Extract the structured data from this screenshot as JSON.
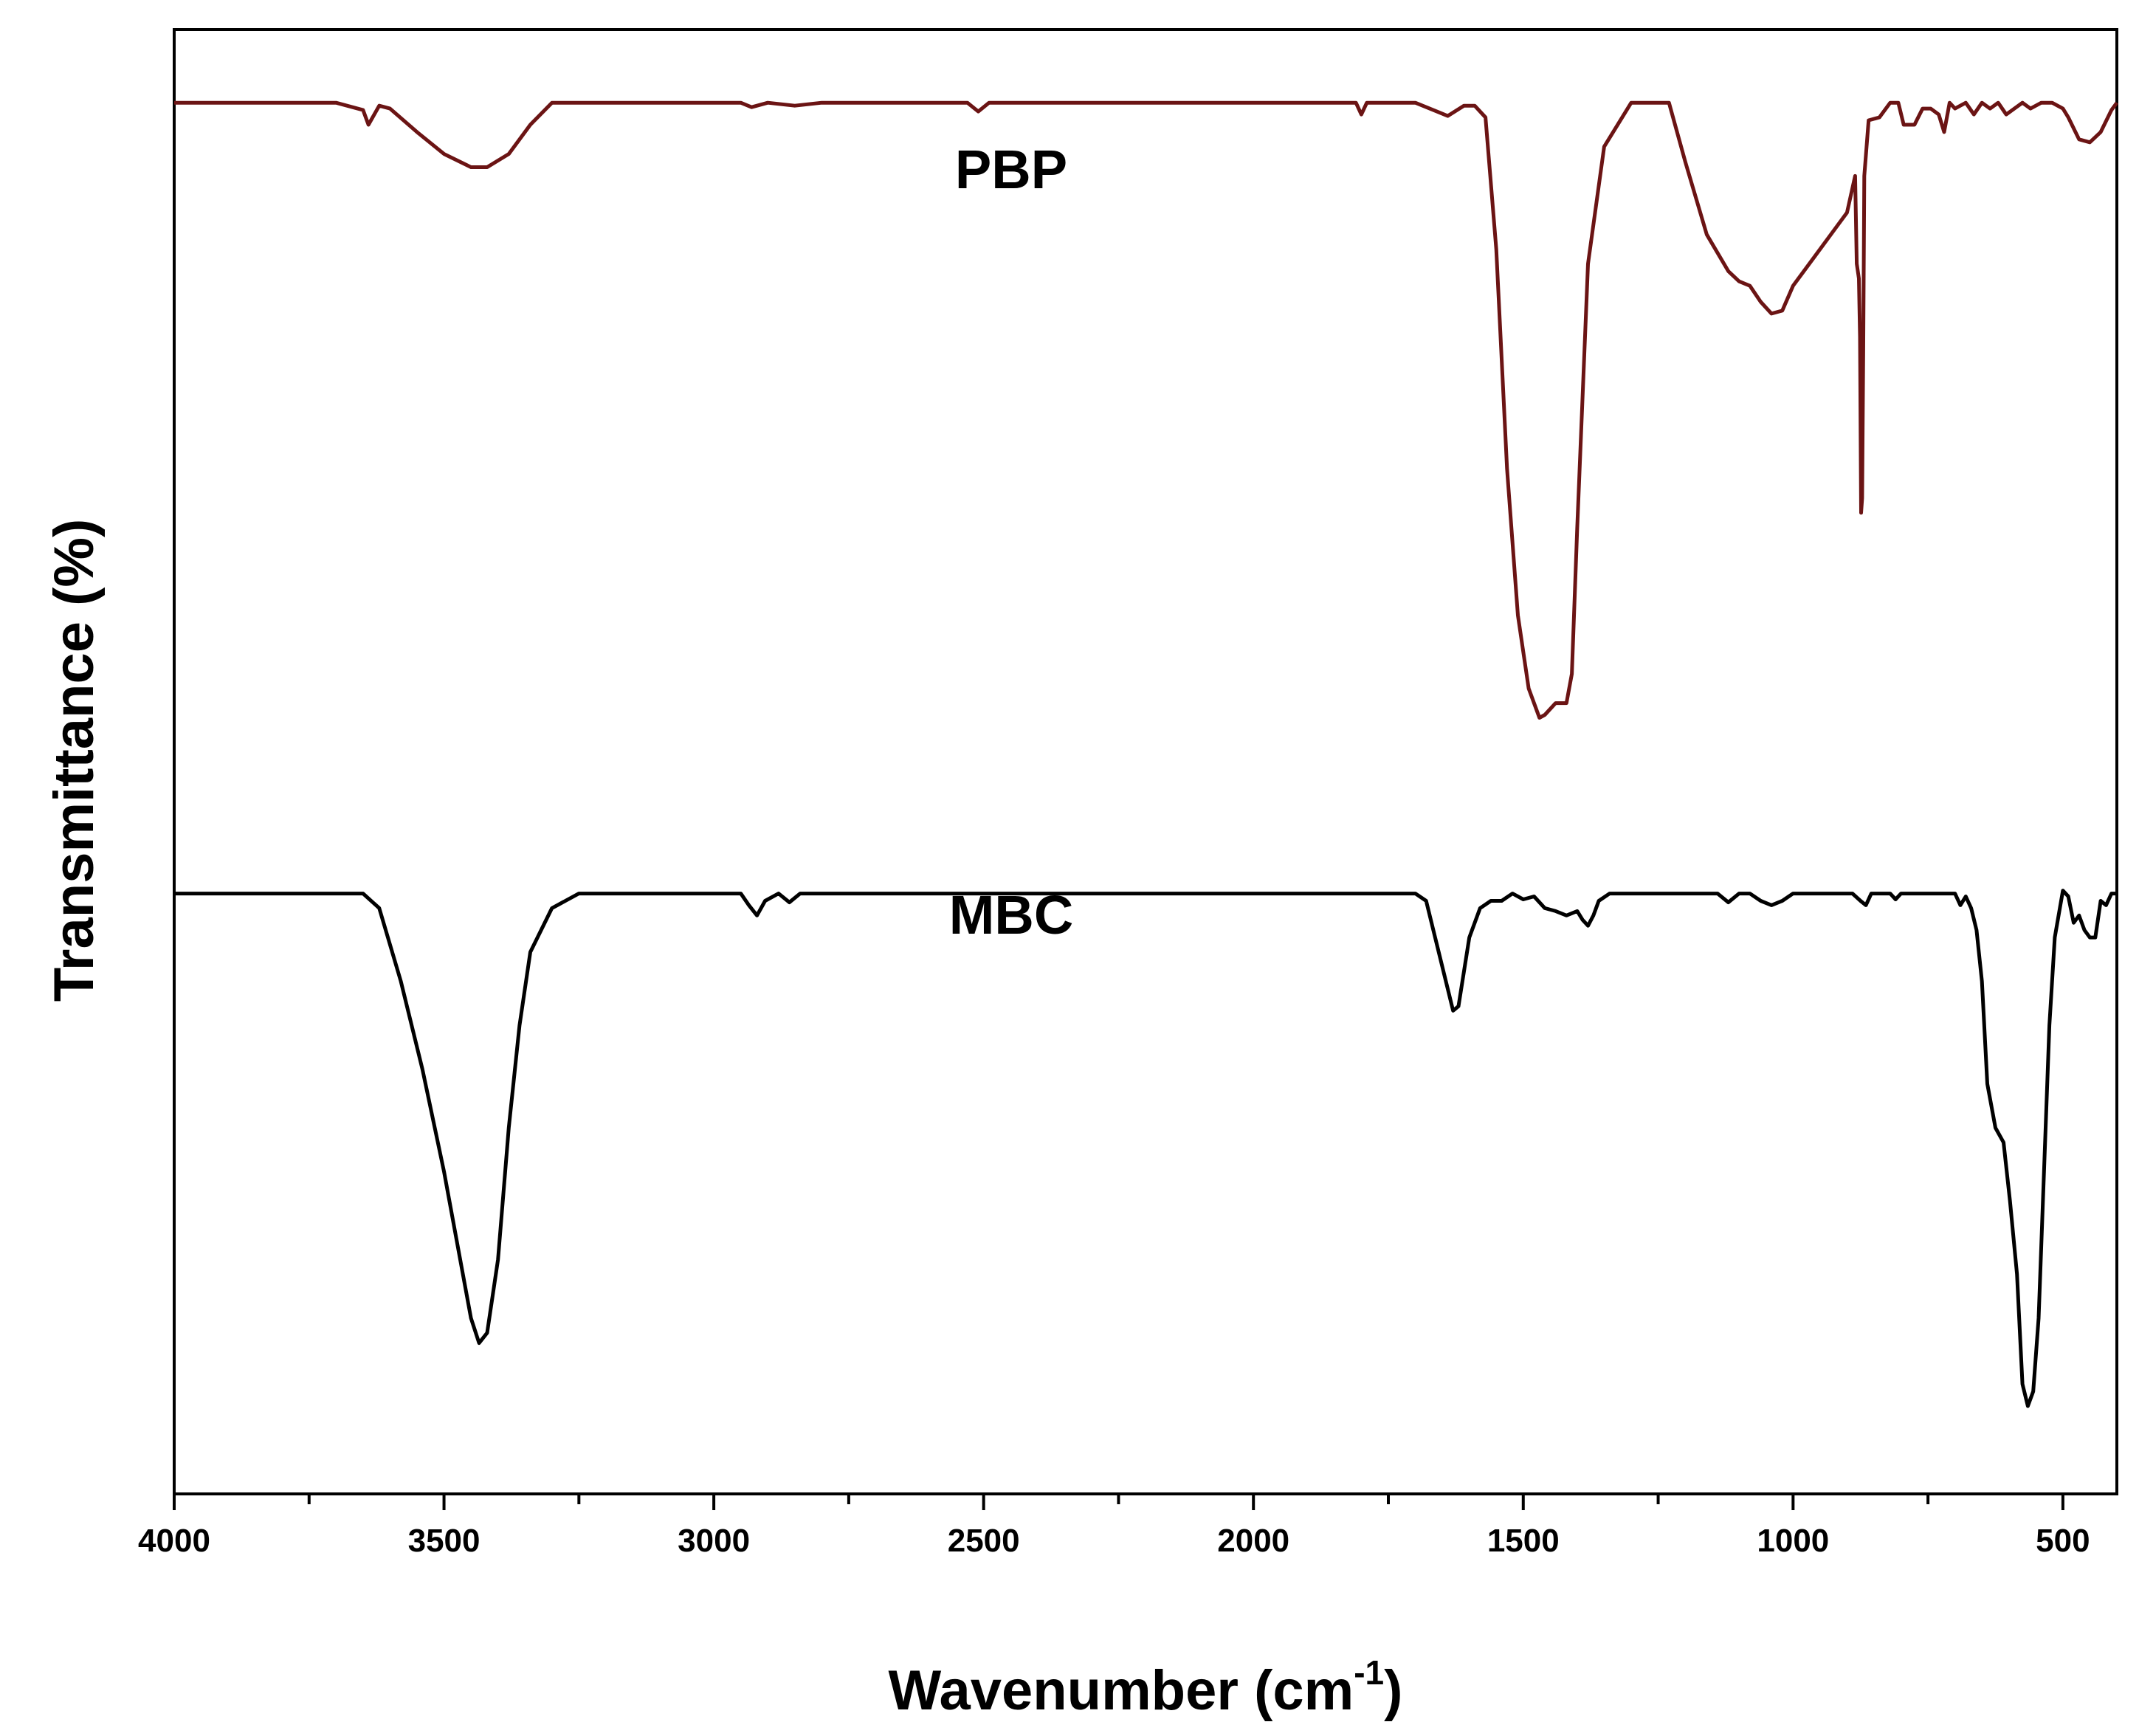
{
  "chart_data": {
    "type": "line",
    "title": "",
    "xlabel": "Wavenumber (cm",
    "xlabel_sup": "-1",
    "xlabel_close": ")",
    "ylabel": "Transmittance (%)",
    "xlim": [
      4000,
      400
    ],
    "x_reversed": true,
    "y_ticks_shown": false,
    "grid": false,
    "legend": "none",
    "x_ticks": [
      "4000",
      "3500",
      "3000",
      "2500",
      "2000",
      "1500",
      "1000",
      "500"
    ],
    "x_tick_values": [
      4000,
      3500,
      3000,
      2500,
      2000,
      1500,
      1000,
      500
    ],
    "series": [
      {
        "name": "PBP",
        "color": "#6b1414",
        "points": [
          [
            4000,
            95
          ],
          [
            3700,
            95
          ],
          [
            3650,
            94.5
          ],
          [
            3640,
            93.5
          ],
          [
            3620,
            94.8
          ],
          [
            3600,
            94.6
          ],
          [
            3550,
            93
          ],
          [
            3500,
            91.5
          ],
          [
            3450,
            90.6
          ],
          [
            3420,
            90.6
          ],
          [
            3380,
            91.5
          ],
          [
            3340,
            93.5
          ],
          [
            3300,
            95
          ],
          [
            2950,
            95
          ],
          [
            2930,
            94.7
          ],
          [
            2900,
            95
          ],
          [
            2850,
            94.8
          ],
          [
            2800,
            95
          ],
          [
            2530,
            95
          ],
          [
            2510,
            94.4
          ],
          [
            2490,
            95
          ],
          [
            1810,
            95
          ],
          [
            1800,
            94.2
          ],
          [
            1790,
            95
          ],
          [
            1700,
            95
          ],
          [
            1660,
            94.4
          ],
          [
            1640,
            94.1
          ],
          [
            1610,
            94.8
          ],
          [
            1590,
            94.8
          ],
          [
            1570,
            94
          ],
          [
            1550,
            85
          ],
          [
            1530,
            70
          ],
          [
            1510,
            60
          ],
          [
            1490,
            55
          ],
          [
            1470,
            53
          ],
          [
            1460,
            53.2
          ],
          [
            1440,
            54
          ],
          [
            1420,
            54
          ],
          [
            1410,
            56
          ],
          [
            1400,
            66
          ],
          [
            1380,
            84
          ],
          [
            1350,
            92
          ],
          [
            1300,
            95
          ],
          [
            1230,
            95
          ],
          [
            1200,
            91
          ],
          [
            1160,
            86
          ],
          [
            1120,
            83.5
          ],
          [
            1100,
            82.8
          ],
          [
            1080,
            82.5
          ],
          [
            1060,
            81.4
          ],
          [
            1040,
            80.6
          ],
          [
            1020,
            80.8
          ],
          [
            1000,
            82.5
          ],
          [
            960,
            84.5
          ],
          [
            920,
            86.5
          ],
          [
            900,
            87.5
          ],
          [
            885,
            90
          ],
          [
            882,
            84
          ],
          [
            878,
            83
          ],
          [
            876,
            79
          ],
          [
            874,
            67
          ],
          [
            872,
            68
          ],
          [
            870,
            78
          ],
          [
            868,
            90
          ],
          [
            860,
            93.8
          ],
          [
            840,
            94
          ],
          [
            820,
            95
          ],
          [
            805,
            95
          ],
          [
            795,
            93.5
          ],
          [
            775,
            93.5
          ],
          [
            760,
            94.6
          ],
          [
            745,
            94.6
          ],
          [
            730,
            94.2
          ],
          [
            720,
            93
          ],
          [
            710,
            95
          ],
          [
            700,
            94.6
          ],
          [
            680,
            95
          ],
          [
            665,
            94.2
          ],
          [
            650,
            95
          ],
          [
            635,
            94.6
          ],
          [
            620,
            95
          ],
          [
            605,
            94.2
          ],
          [
            590,
            94.6
          ],
          [
            575,
            95
          ],
          [
            560,
            94.6
          ],
          [
            540,
            95
          ],
          [
            520,
            95
          ],
          [
            500,
            94.6
          ],
          [
            490,
            94
          ],
          [
            470,
            92.5
          ],
          [
            450,
            92.3
          ],
          [
            430,
            93
          ],
          [
            410,
            94.5
          ],
          [
            400,
            95
          ]
        ]
      },
      {
        "name": "MBC",
        "color": "#000000",
        "points": [
          [
            4000,
            41
          ],
          [
            3650,
            41
          ],
          [
            3620,
            40
          ],
          [
            3580,
            35
          ],
          [
            3540,
            29
          ],
          [
            3500,
            22
          ],
          [
            3470,
            16
          ],
          [
            3450,
            12
          ],
          [
            3435,
            10.3
          ],
          [
            3420,
            11
          ],
          [
            3400,
            16
          ],
          [
            3380,
            25
          ],
          [
            3360,
            32
          ],
          [
            3340,
            37
          ],
          [
            3300,
            40
          ],
          [
            3250,
            41
          ],
          [
            2950,
            41
          ],
          [
            2935,
            40.2
          ],
          [
            2920,
            39.5
          ],
          [
            2905,
            40.5
          ],
          [
            2880,
            41
          ],
          [
            2860,
            40.4
          ],
          [
            2840,
            41
          ],
          [
            2820,
            41
          ],
          [
            1700,
            41
          ],
          [
            1680,
            40.5
          ],
          [
            1660,
            37.5
          ],
          [
            1640,
            34.5
          ],
          [
            1630,
            33
          ],
          [
            1620,
            33.3
          ],
          [
            1600,
            38
          ],
          [
            1580,
            40
          ],
          [
            1560,
            40.5
          ],
          [
            1540,
            40.5
          ],
          [
            1520,
            41
          ],
          [
            1500,
            40.6
          ],
          [
            1480,
            40.8
          ],
          [
            1460,
            40
          ],
          [
            1440,
            39.8
          ],
          [
            1420,
            39.5
          ],
          [
            1400,
            39.8
          ],
          [
            1390,
            39.2
          ],
          [
            1380,
            38.8
          ],
          [
            1370,
            39.5
          ],
          [
            1360,
            40.5
          ],
          [
            1340,
            41
          ],
          [
            1140,
            41
          ],
          [
            1120,
            40.4
          ],
          [
            1100,
            41
          ],
          [
            1080,
            41
          ],
          [
            1060,
            40.5
          ],
          [
            1040,
            40.2
          ],
          [
            1020,
            40.5
          ],
          [
            1000,
            41
          ],
          [
            890,
            41
          ],
          [
            875,
            40.5
          ],
          [
            865,
            40.2
          ],
          [
            855,
            41
          ],
          [
            820,
            41
          ],
          [
            810,
            40.6
          ],
          [
            800,
            41
          ],
          [
            700,
            41
          ],
          [
            690,
            40.2
          ],
          [
            680,
            40.8
          ],
          [
            670,
            40
          ],
          [
            660,
            38.5
          ],
          [
            650,
            35
          ],
          [
            640,
            28
          ],
          [
            625,
            25
          ],
          [
            610,
            24
          ],
          [
            598,
            20
          ],
          [
            585,
            15
          ],
          [
            575,
            7.5
          ],
          [
            565,
            6
          ],
          [
            555,
            7
          ],
          [
            545,
            12
          ],
          [
            535,
            22
          ],
          [
            525,
            32
          ],
          [
            515,
            38
          ],
          [
            500,
            41.2
          ],
          [
            490,
            40.8
          ],
          [
            480,
            39
          ],
          [
            470,
            39.5
          ],
          [
            460,
            38.5
          ],
          [
            450,
            38
          ],
          [
            440,
            38
          ],
          [
            430,
            40.5
          ],
          [
            420,
            40.2
          ],
          [
            410,
            41
          ],
          [
            400,
            41
          ]
        ]
      }
    ]
  }
}
